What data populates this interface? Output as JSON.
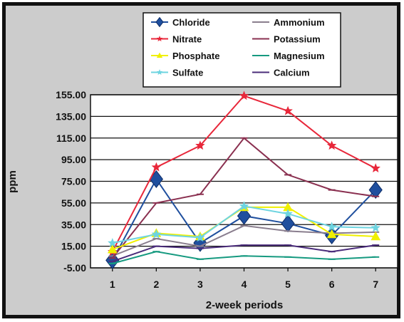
{
  "chart_data": {
    "type": "line",
    "title": "",
    "xlabel": "2-week periods",
    "ylabel": "ppm",
    "x": [
      1,
      2,
      3,
      4,
      5,
      6,
      7
    ],
    "ylim": [
      -5,
      155
    ],
    "y_ticks": [
      "-5.00",
      "15.00",
      "35.00",
      "55.00",
      "75.00",
      "95.00",
      "115.00",
      "135.00",
      "155.00"
    ],
    "grid": true,
    "legend_position": "top",
    "series": [
      {
        "name": "Chloride",
        "color": "#1f4f9e",
        "marker": "diamond",
        "values": [
          2,
          77,
          18,
          43,
          36,
          25,
          67
        ]
      },
      {
        "name": "Ammonium",
        "color": "#8a7e8e",
        "marker": "line",
        "values": [
          6,
          22,
          15,
          34,
          29,
          27,
          28
        ]
      },
      {
        "name": "Nitrate",
        "color": "#e8273a",
        "marker": "star",
        "values": [
          10,
          88,
          108,
          154,
          140,
          108,
          87
        ]
      },
      {
        "name": "Potassium",
        "color": "#8a3050",
        "marker": "line",
        "values": [
          4,
          55,
          63,
          115,
          81,
          67,
          61
        ]
      },
      {
        "name": "Phosphate",
        "color": "#f0f000",
        "marker": "triangle",
        "values": [
          12,
          27,
          24,
          51,
          51,
          26,
          24
        ]
      },
      {
        "name": "Magnesium",
        "color": "#169a80",
        "marker": "line",
        "values": [
          -1,
          10,
          3,
          6,
          5,
          3,
          5
        ]
      },
      {
        "name": "Sulfate",
        "color": "#6ed4e0",
        "marker": "star",
        "values": [
          18,
          26,
          23,
          52,
          45,
          33,
          32
        ]
      },
      {
        "name": "Calcium",
        "color": "#4a2c7a",
        "marker": "line",
        "values": [
          1,
          15,
          13,
          16,
          16,
          10,
          16
        ]
      }
    ]
  }
}
